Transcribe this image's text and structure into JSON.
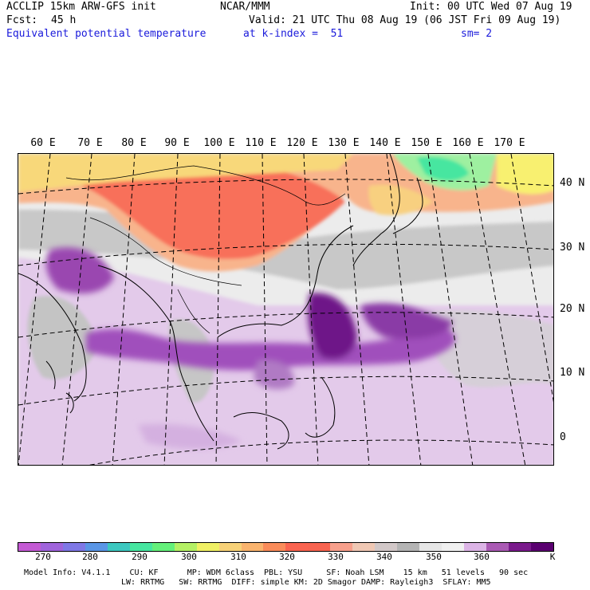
{
  "header": {
    "model": "ACCLIP 15km ARW-GFS init",
    "org": "NCAR/MMM",
    "init": "Init: 00 UTC Wed 07 Aug 19",
    "fcst_label": "Fcst:",
    "fcst_value": "45 h",
    "valid": "Valid: 21 UTC Thu 08 Aug 19 (06 JST Fri 09 Aug 19)",
    "field": "Equivalent potential temperature",
    "level": "at k-index =  51",
    "smoothing": "sm= 2"
  },
  "map": {
    "lon_labels": [
      "60 E",
      "70 E",
      "80 E",
      "90 E",
      "100 E",
      "110 E",
      "120 E",
      "130 E",
      "140 E",
      "150 E",
      "160 E",
      "170 E"
    ],
    "lat_labels": [
      "40 N",
      "30 N",
      "20 N",
      "10 N",
      "0"
    ]
  },
  "colorbar": {
    "colors": [
      "#c45ad4",
      "#a064dc",
      "#7f78e6",
      "#5a96e6",
      "#3cc8c0",
      "#46e6a0",
      "#64f07a",
      "#b4f064",
      "#f0f064",
      "#f8d278",
      "#fab46e",
      "#fa8c5a",
      "#fa6450",
      "#f86450",
      "#f8a08c",
      "#f0c8b4",
      "#d2c8c8",
      "#b4b4b4",
      "#e6e6e6",
      "#f0f0f0",
      "#dcb4e6",
      "#aa5ab4",
      "#7a1a8c",
      "#5a0070"
    ],
    "labels": [
      "270",
      "280",
      "290",
      "300",
      "310",
      "320",
      "330",
      "340",
      "350",
      "360"
    ],
    "unit": "K"
  },
  "footer": {
    "line1": "Model Info: V4.1.1    CU: KF      MP: WDM 6class  PBL: YSU     SF: Noah LSM    15 km   51 levels   90 sec",
    "line2": "LW: RRTMG   SW: RRTMG  DIFF: simple KM: 2D Smagor DAMP: Rayleigh3  SFLAY: MM5"
  }
}
